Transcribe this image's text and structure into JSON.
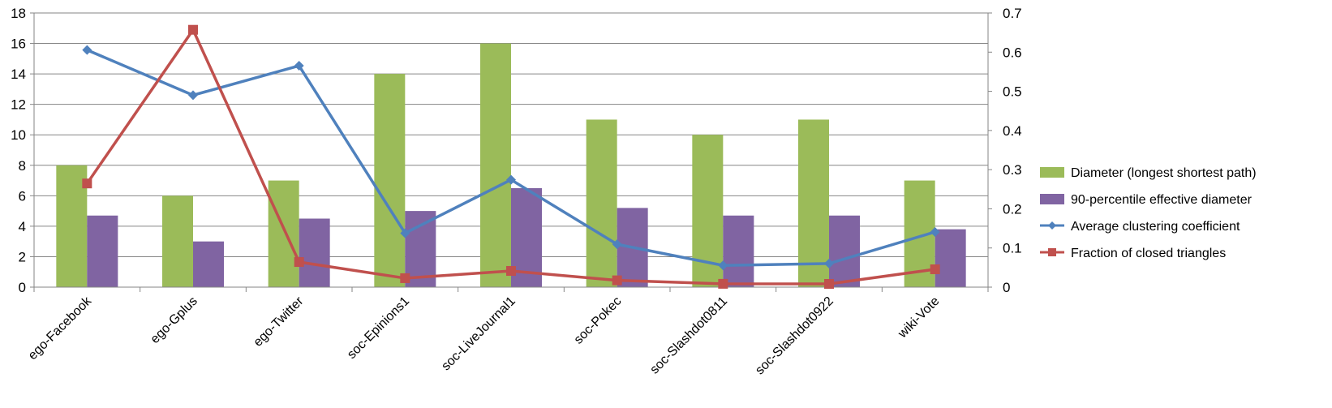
{
  "chart_data": {
    "type": "bar",
    "categories": [
      "ego-Facebook",
      "ego-Gplus",
      "ego-Twitter",
      "soc-Epinions1",
      "soc-LiveJournal1",
      "soc-Pokec",
      "soc-Slashdot0811",
      "soc-Slashdot0922",
      "wiki-Vote"
    ],
    "left_axis": {
      "ylim": [
        0,
        18
      ],
      "ticks": [
        0,
        2,
        4,
        6,
        8,
        10,
        12,
        14,
        16,
        18
      ]
    },
    "right_axis": {
      "ylim": [
        0,
        0.7
      ],
      "ticks": [
        "0",
        "0.1",
        "0.2",
        "0.3",
        "0.4",
        "0.5",
        "0.6",
        "0.7"
      ]
    },
    "grid": true,
    "legend_position": "right",
    "series": [
      {
        "name": "Diameter (longest shortest path)",
        "type": "bar",
        "axis": "left",
        "color": "#9BBB59",
        "values": [
          8,
          6,
          7,
          14,
          16,
          11,
          10,
          11,
          7
        ]
      },
      {
        "name": "90-percentile effective diameter",
        "type": "bar",
        "axis": "left",
        "color": "#8064A2",
        "values": [
          4.7,
          3.0,
          4.5,
          5.0,
          6.5,
          5.2,
          4.7,
          4.7,
          3.8
        ]
      },
      {
        "name": "Average clustering coefficient",
        "type": "line",
        "marker": "diamond",
        "axis": "right",
        "color": "#4F81BD",
        "values": [
          0.6055,
          0.4901,
          0.5653,
          0.1378,
          0.2742,
          0.1094,
          0.0555,
          0.0603,
          0.1409
        ]
      },
      {
        "name": "Fraction of closed triangles",
        "type": "line",
        "marker": "square",
        "axis": "right",
        "color": "#C0504D",
        "values": [
          0.2647,
          0.6571,
          0.0641,
          0.0229,
          0.0414,
          0.0174,
          0.0085,
          0.0083,
          0.0456
        ]
      }
    ]
  }
}
